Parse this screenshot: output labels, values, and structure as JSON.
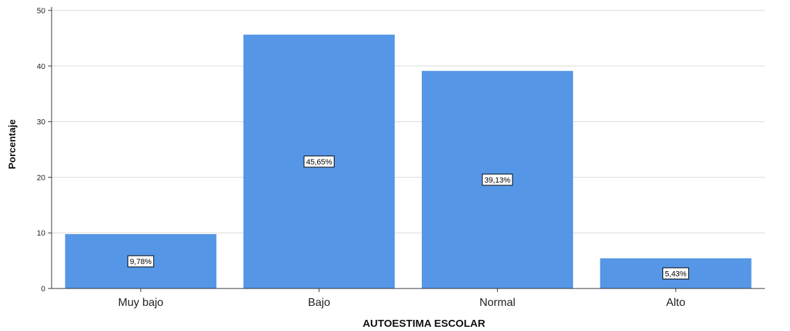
{
  "chart_data": {
    "type": "bar",
    "title": "",
    "xlabel": "AUTOESTIMA ESCOLAR",
    "ylabel": "Porcentaje",
    "categories": [
      "Muy bajo",
      "Bajo",
      "Normal",
      "Alto"
    ],
    "values": [
      9.78,
      45.65,
      39.13,
      5.43
    ],
    "data_labels": [
      "9,78%",
      "45,65%",
      "39,13%",
      "5,43%"
    ],
    "ylim": [
      0,
      50
    ],
    "yticks": [
      0,
      10,
      20,
      30,
      40,
      50
    ],
    "grid": true,
    "legend": "none",
    "colors": {
      "bar": "#5596e6",
      "gridline": "#d9d9d9",
      "axis": "#333333"
    }
  }
}
